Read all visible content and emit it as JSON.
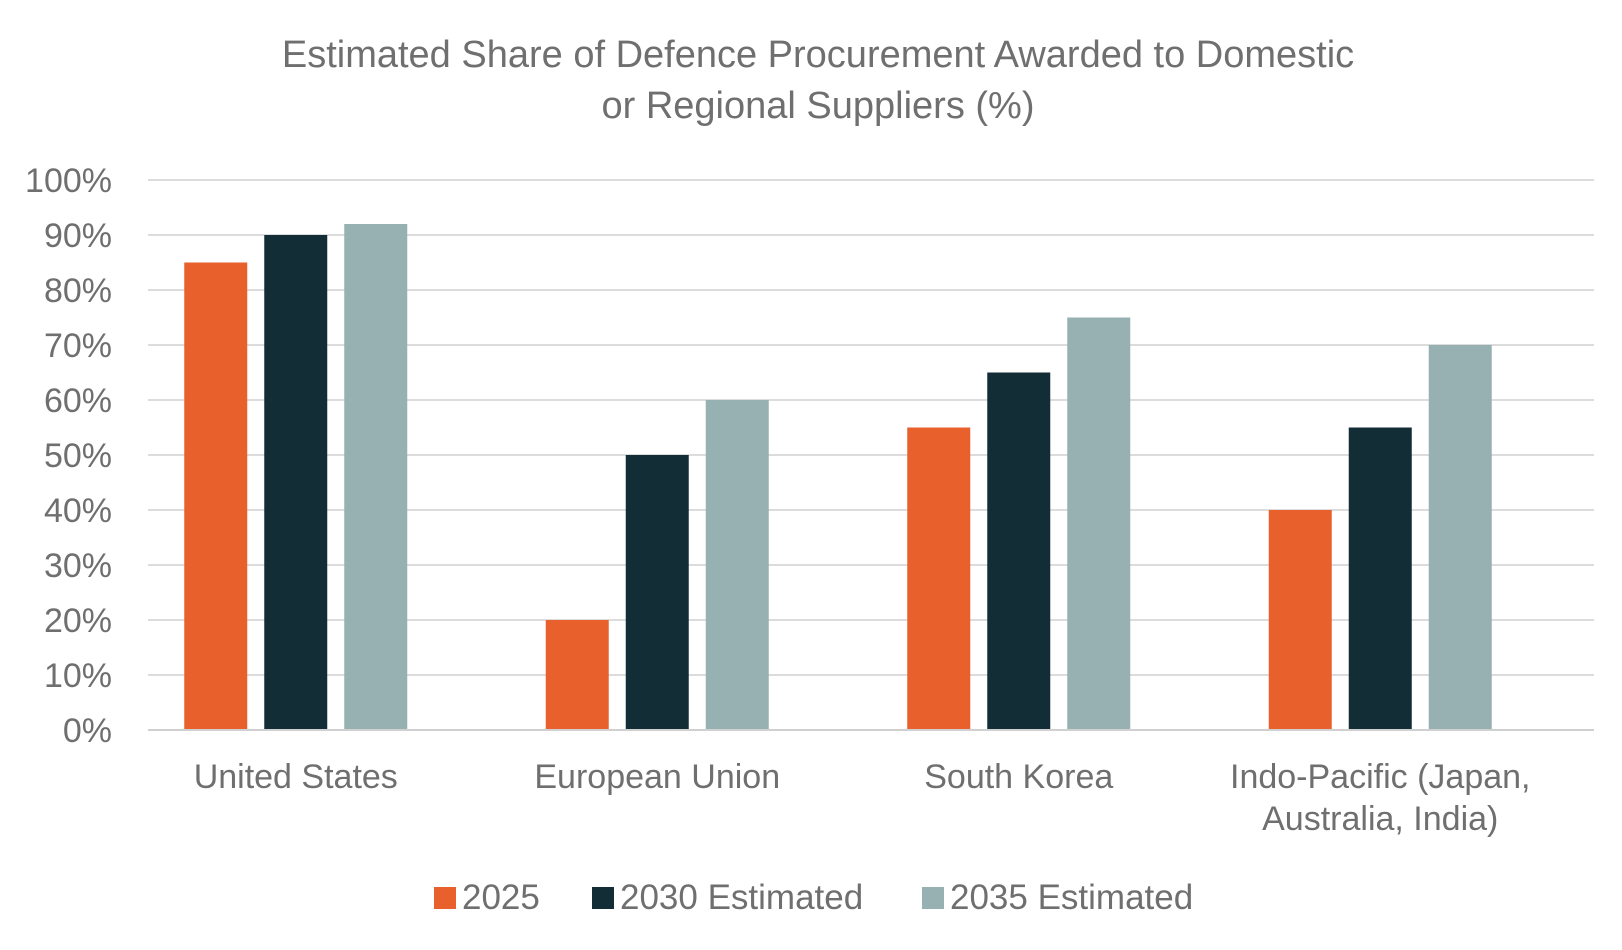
{
  "chart_data": {
    "type": "bar",
    "title_lines": [
      "Estimated Share of Defence Procurement Awarded to Domestic",
      "or Regional Suppliers (%)"
    ],
    "categories": [
      [
        "United States"
      ],
      [
        "European Union"
      ],
      [
        "South Korea"
      ],
      [
        "Indo-Pacific (Japan,",
        "Australia, India)"
      ]
    ],
    "series": [
      {
        "name": "2025",
        "color": "#e8612c",
        "values": [
          85,
          20,
          55,
          40
        ]
      },
      {
        "name": "2030 Estimated",
        "color": "#132d37",
        "values": [
          90,
          50,
          65,
          55
        ]
      },
      {
        "name": "2035 Estimated",
        "color": "#97b0b1",
        "values": [
          92,
          60,
          75,
          70
        ]
      }
    ],
    "ylim": [
      0,
      100
    ],
    "ytick_values": [
      0,
      10,
      20,
      30,
      40,
      50,
      60,
      70,
      80,
      90,
      100
    ],
    "ytick_labels": [
      "0%",
      "10%",
      "20%",
      "30%",
      "40%",
      "50%",
      "60%",
      "70%",
      "80%",
      "90%",
      "100%"
    ],
    "grid": true,
    "legend_position": "bottom"
  }
}
